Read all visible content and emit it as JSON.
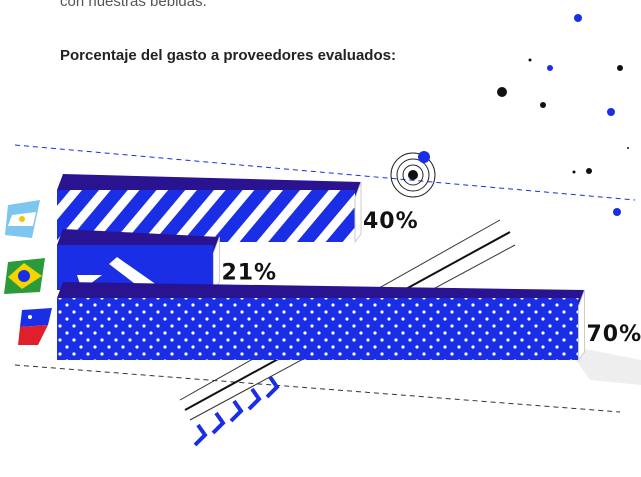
{
  "chart_data": {
    "type": "bar",
    "intro": "con nuestras bebidas.",
    "title": "Porcentaje del gasto a proveedores evaluados:",
    "values": [
      40,
      21,
      70
    ],
    "value_labels": [
      "40%",
      "21%",
      "70%"
    ],
    "color": "#1a2ee6"
  }
}
